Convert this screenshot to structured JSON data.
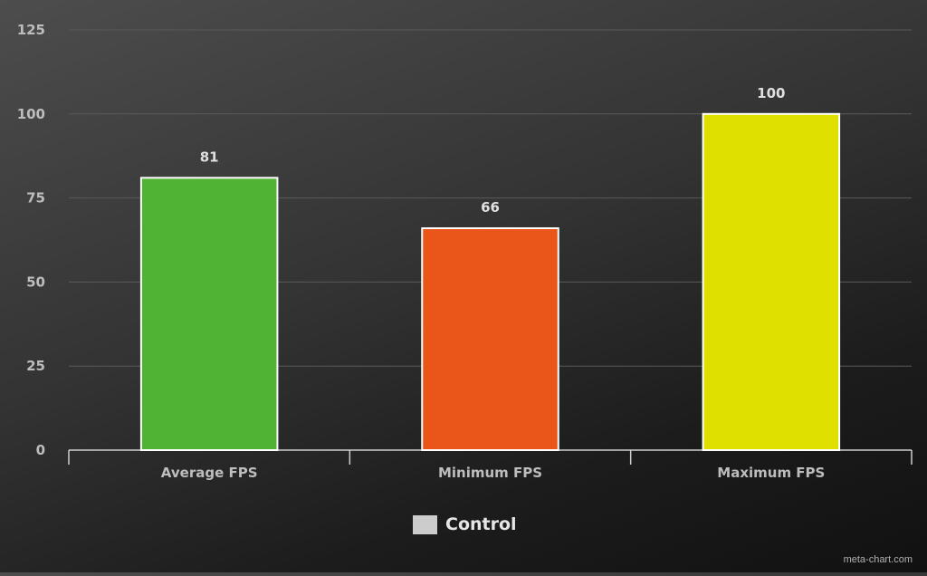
{
  "chart_data": {
    "type": "bar",
    "categories": [
      "Average FPS",
      "Minimum FPS",
      "Maximum FPS"
    ],
    "series": [
      {
        "name": "Control",
        "values": [
          81,
          66,
          100
        ]
      }
    ],
    "data_labels": [
      "81",
      "66",
      "100"
    ],
    "bar_colors": [
      "#50b333",
      "#ea5619",
      "#dfe000"
    ],
    "bar_border_color": "#ffffff",
    "ylim": [
      0,
      125
    ],
    "yticks": [
      0,
      25,
      50,
      75,
      100,
      125
    ],
    "grid": true,
    "legend_position": "bottom-center",
    "title": "",
    "xlabel": "",
    "ylabel": ""
  },
  "legend": {
    "label": "Control",
    "swatch_color": "#cccccc"
  },
  "watermark": "meta-chart.com",
  "colors": {
    "grid": "#5a5a5a",
    "axis": "#cfcfcf",
    "tick_label": "#bdbdbd",
    "data_label": "#e0e0e0"
  }
}
